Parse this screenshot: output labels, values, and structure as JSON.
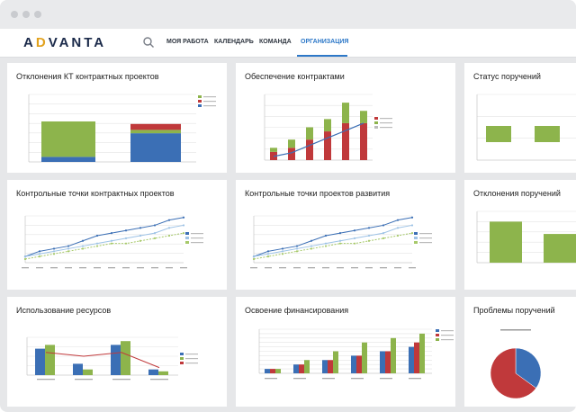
{
  "app": {
    "logo_left": "A",
    "logo_accent": "D",
    "logo_rest": "VANTA"
  },
  "nav": {
    "items": [
      {
        "label": "МОЯ РАБОТА"
      },
      {
        "label": "КАЛЕНДАРЬ"
      },
      {
        "label": "КОМАНДА"
      },
      {
        "label": "ОРГАНИЗАЦИЯ"
      }
    ],
    "active_index": 3
  },
  "colors": {
    "accent": "#2d78c8",
    "green": "#8db44c",
    "blue": "#3b6fb5",
    "red": "#c0393b"
  },
  "cards": {
    "kt_deviation": {
      "title": "Отклонения КТ контрактных проектов"
    },
    "contracts": {
      "title": "Обеспечение контрактами"
    },
    "orders_status": {
      "title": "Статус поручений"
    },
    "kt_contract_points": {
      "title": "Контрольные точки контрактных проектов"
    },
    "kt_dev_points": {
      "title": "Контрольные точки проектов развития"
    },
    "orders_deviation": {
      "title": "Отклонения поручений"
    },
    "resources": {
      "title": "Использование ресурсов"
    },
    "financing": {
      "title": "Освоение финансирования"
    },
    "orders_problems": {
      "title": "Проблемы поручений"
    }
  },
  "chart_data": [
    {
      "type": "bar",
      "id": "kt_deviation",
      "categories": [
        "",
        ""
      ],
      "series": [
        {
          "values": [
            4.2,
            0.4
          ]
        },
        {
          "values": [
            0.6,
            3.4
          ]
        },
        {
          "values": [
            0,
            0.7
          ]
        }
      ],
      "ylim": [
        0,
        8
      ]
    },
    {
      "type": "bar",
      "id": "contracts",
      "categories": [
        "",
        "",
        "",
        "",
        "",
        ""
      ],
      "series": [
        {
          "values": [
            3,
            5,
            8,
            10,
            14,
            12
          ]
        },
        {
          "values": [
            2,
            3,
            5,
            7,
            9,
            9
          ]
        }
      ],
      "line": [
        1,
        2,
        4,
        6,
        8,
        10
      ]
    },
    {
      "type": "bar",
      "id": "orders_status",
      "categories": [
        "",
        ""
      ],
      "values": [
        2,
        2
      ],
      "ylim": [
        0,
        3
      ]
    },
    {
      "type": "line",
      "id": "kt_contract_points",
      "x": [
        "",
        "",
        "",
        "",
        "",
        "",
        "",
        "",
        "",
        "",
        "",
        ""
      ],
      "series": [
        {
          "values": [
            1,
            3,
            4,
            5,
            7,
            9,
            10,
            11,
            12,
            13,
            15,
            16
          ]
        },
        {
          "values": [
            1,
            2,
            3,
            4,
            5,
            6,
            7,
            8,
            9,
            10,
            12,
            13
          ]
        },
        {
          "values": [
            0,
            1,
            2,
            3,
            4,
            5,
            6,
            6,
            7,
            8,
            9,
            10
          ]
        }
      ]
    },
    {
      "type": "line",
      "id": "kt_dev_points",
      "x": [
        "",
        "",
        "",
        "",
        "",
        "",
        "",
        "",
        "",
        "",
        "",
        ""
      ],
      "series": [
        {
          "values": [
            1,
            3,
            4,
            5,
            7,
            9,
            10,
            11,
            12,
            13,
            15,
            16
          ]
        },
        {
          "values": [
            1,
            2,
            3,
            4,
            5,
            6,
            7,
            8,
            9,
            10,
            12,
            13
          ]
        },
        {
          "values": [
            0,
            1,
            2,
            3,
            4,
            5,
            6,
            6,
            7,
            8,
            9,
            10
          ]
        }
      ]
    },
    {
      "type": "bar",
      "id": "orders_deviation",
      "categories": [
        "",
        ""
      ],
      "values": [
        4,
        2.8
      ],
      "ylim": [
        0,
        5
      ]
    },
    {
      "type": "bar",
      "id": "resources",
      "categories": [
        "",
        "",
        "",
        ""
      ],
      "series": [
        {
          "values": [
            7,
            3,
            8,
            1.5
          ]
        },
        {
          "values": [
            8,
            1.5,
            9,
            1
          ]
        }
      ],
      "line": [
        6,
        5,
        6,
        2
      ]
    },
    {
      "type": "bar",
      "id": "financing",
      "categories": [
        "",
        "",
        "",
        "",
        "",
        ""
      ],
      "series": [
        {
          "values": [
            1,
            2,
            3,
            4,
            5,
            6
          ]
        },
        {
          "values": [
            1,
            2,
            3,
            4,
            5,
            7
          ]
        },
        {
          "values": [
            1,
            3,
            5,
            7,
            8,
            9
          ]
        }
      ],
      "ylim": [
        0,
        10
      ]
    },
    {
      "type": "pie",
      "id": "orders_problems",
      "values": [
        35,
        65
      ]
    }
  ]
}
